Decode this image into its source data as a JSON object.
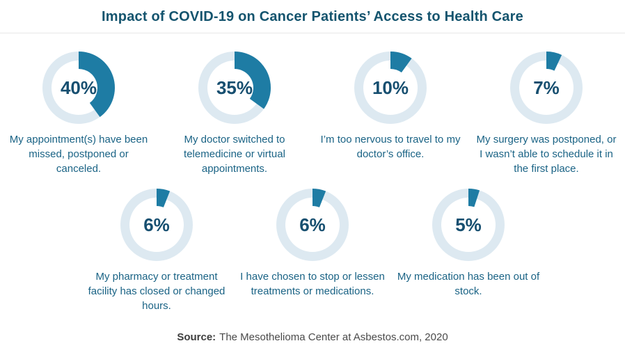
{
  "title": "Impact of COVID-19 on Cancer Patients’ Access to Health Care",
  "colors": {
    "accent": "#1e7ca4",
    "ring": "#dde9f1",
    "title_text": "#14546e",
    "percent_text": "#174f70",
    "caption_text": "#1a6385",
    "source_label_text": "#3d3d3d",
    "source_text": "#4a4a4a",
    "divider": "#e7e7e7"
  },
  "chart_data": {
    "type": "pie",
    "variant": "donut-small-multiples",
    "title": "Impact of COVID-19 on Cancer Patients’ Access to Health Care",
    "unit": "%",
    "legend_position": "none",
    "items": [
      {
        "value": 40,
        "percent_label": "40%",
        "caption": "My appointment(s) have been missed, postponed or canceled."
      },
      {
        "value": 35,
        "percent_label": "35%",
        "caption": "My doctor switched to telemedicine or virtual appointments."
      },
      {
        "value": 10,
        "percent_label": "10%",
        "caption": "I’m too nervous to travel to my doctor’s office."
      },
      {
        "value": 7,
        "percent_label": "7%",
        "caption": "My surgery was postponed, or I wasn’t able to schedule it in the first place."
      },
      {
        "value": 6,
        "percent_label": "6%",
        "caption": "My pharmacy or treatment facility has closed or changed hours."
      },
      {
        "value": 6,
        "percent_label": "6%",
        "caption": "I have chosen to stop or lessen treatments or medications."
      },
      {
        "value": 5,
        "percent_label": "5%",
        "caption": "My medication has been out of stock."
      }
    ],
    "source": "The Mesothelioma Center at Asbestos.com, 2020"
  },
  "footer": {
    "label": "Source:",
    "text": "The Mesothelioma Center at Asbestos.com, 2020"
  }
}
